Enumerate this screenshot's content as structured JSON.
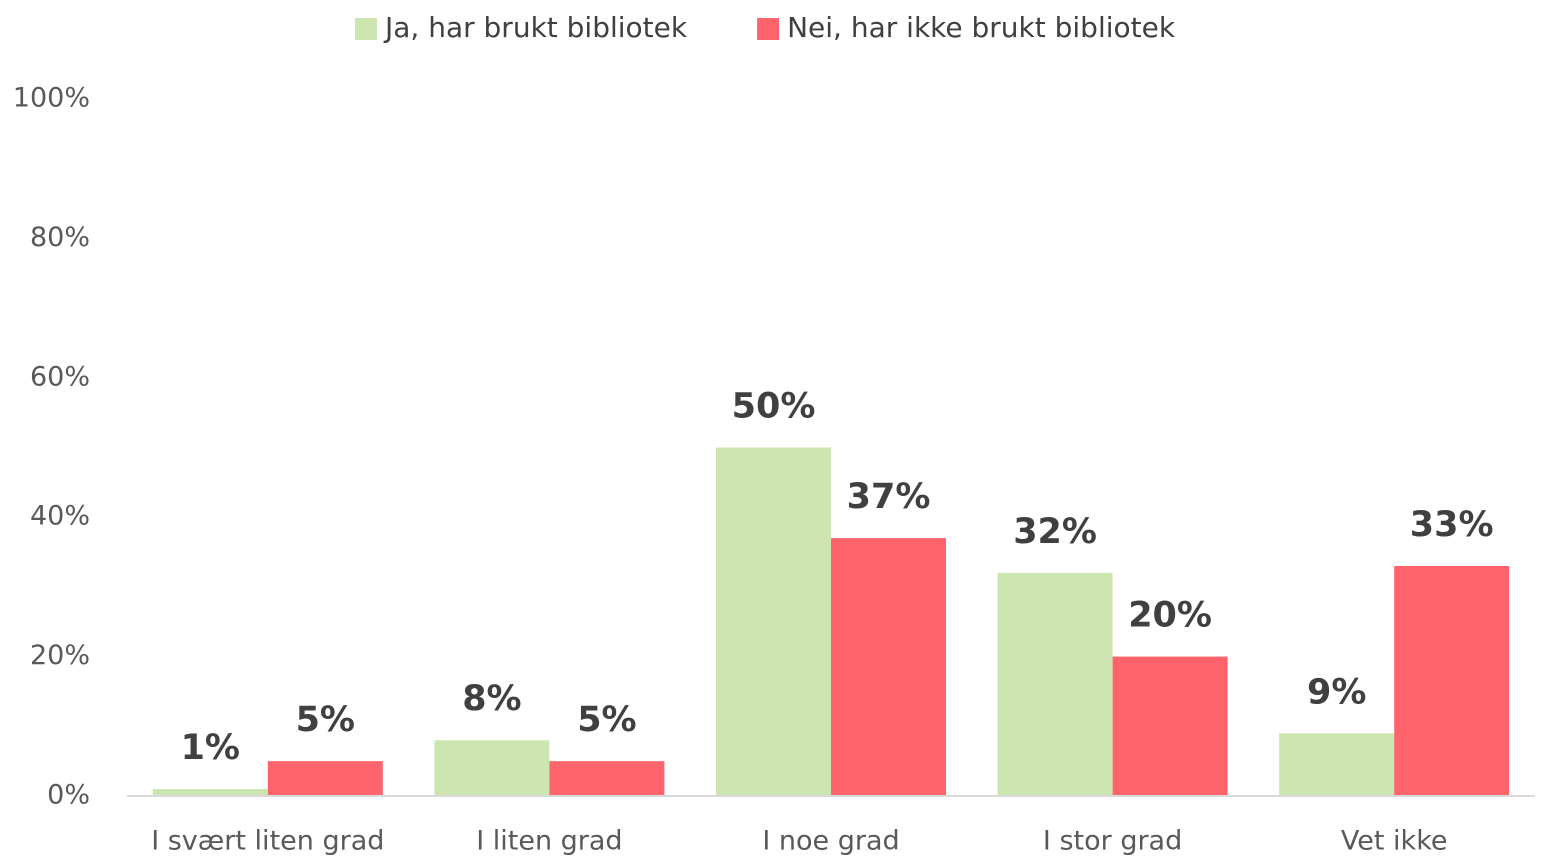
{
  "chart_data": {
    "type": "bar",
    "categories": [
      "I svært liten grad",
      "I liten grad",
      "I noe grad",
      "I stor grad",
      "Vet ikke"
    ],
    "series": [
      {
        "name": "Ja, har brukt bibliotek",
        "color": "#cde6b1",
        "values": [
          1,
          8,
          50,
          32,
          9
        ],
        "value_labels": [
          "1%",
          "8%",
          "50%",
          "32%",
          "9%"
        ]
      },
      {
        "name": "Nei, har ikke brukt bibliotek",
        "color": "#ff646c",
        "values": [
          5,
          5,
          37,
          20,
          33
        ],
        "value_labels": [
          "5%",
          "5%",
          "37%",
          "20%",
          "33%"
        ]
      }
    ],
    "ylim": [
      0,
      100
    ],
    "yticks": [
      {
        "value": 0,
        "label": "0%"
      },
      {
        "value": 20,
        "label": "20%"
      },
      {
        "value": 40,
        "label": "40%"
      },
      {
        "value": 60,
        "label": "60%"
      },
      {
        "value": 80,
        "label": "80%"
      },
      {
        "value": 100,
        "label": "100%"
      }
    ],
    "grid": false,
    "legend": "top"
  }
}
